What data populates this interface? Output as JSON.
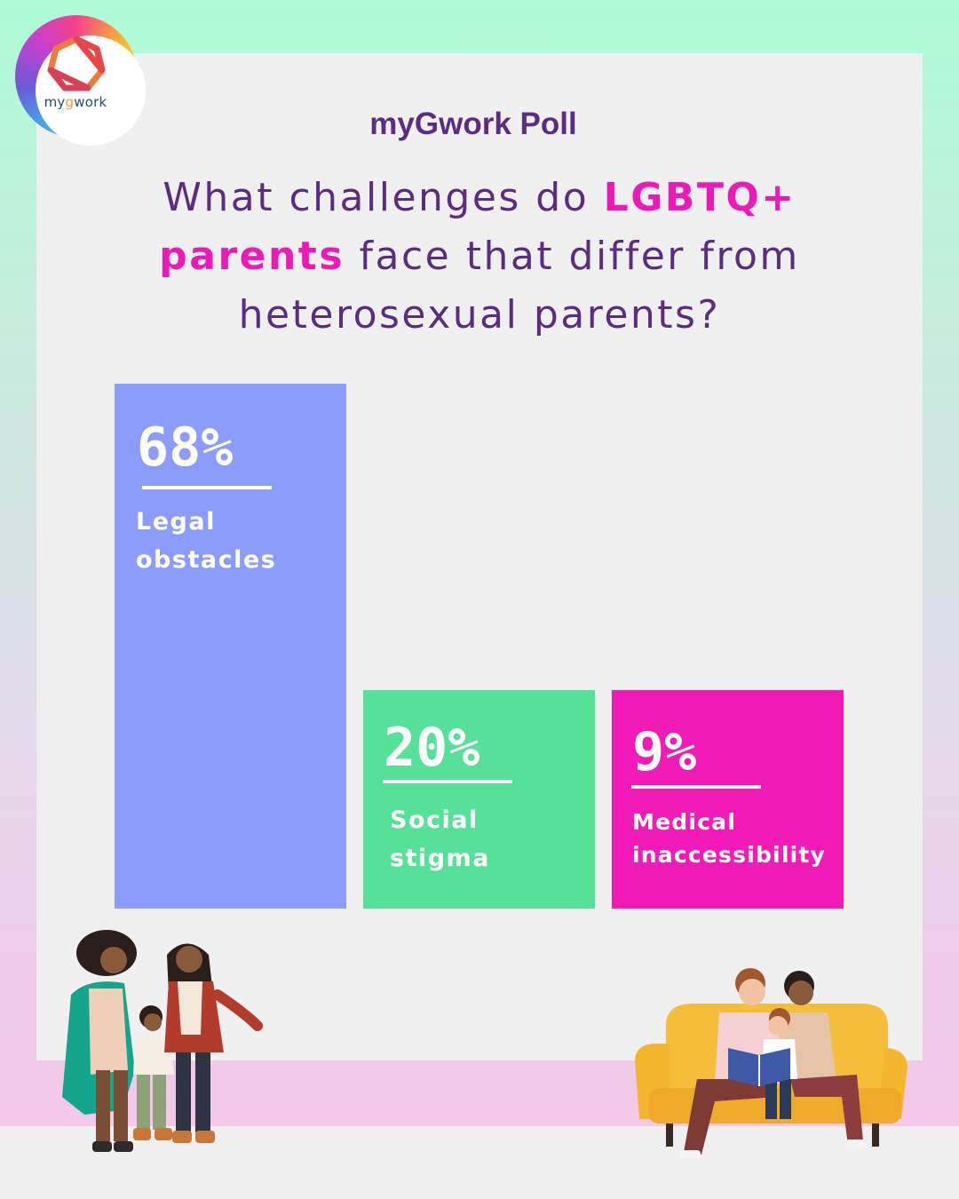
{
  "brand": {
    "logo_word_left": "my",
    "logo_word_g": "g",
    "logo_word_right": "work",
    "poll_title": "myGwork Poll"
  },
  "question": {
    "line1_prefix": "What challenges do ",
    "highlight_1": "LGBTQ+",
    "highlight_2": "parents",
    "line2_suffix": " face that differ from",
    "line3": "heterosexual parents?"
  },
  "colors": {
    "bar_legal": "#8b9cfc",
    "bar_social": "#57e097",
    "bar_medical": "#f21bb7",
    "accent_pink": "#ee1ab7",
    "title_purple": "#5b2c82"
  },
  "chart_data": {
    "type": "bar",
    "categories": [
      "Legal obstacles",
      "Social stigma",
      "Medical inaccessibility"
    ],
    "values": [
      68,
      20,
      9
    ],
    "value_labels": [
      "68%",
      "20%",
      "9%"
    ],
    "label_lines": [
      [
        "Legal",
        "obstacles"
      ],
      [
        "Social",
        "stigma"
      ],
      [
        "Medical",
        "inaccessibility"
      ]
    ],
    "title": "",
    "xlabel": "",
    "ylabel": "",
    "grid": false,
    "legend": "none"
  }
}
